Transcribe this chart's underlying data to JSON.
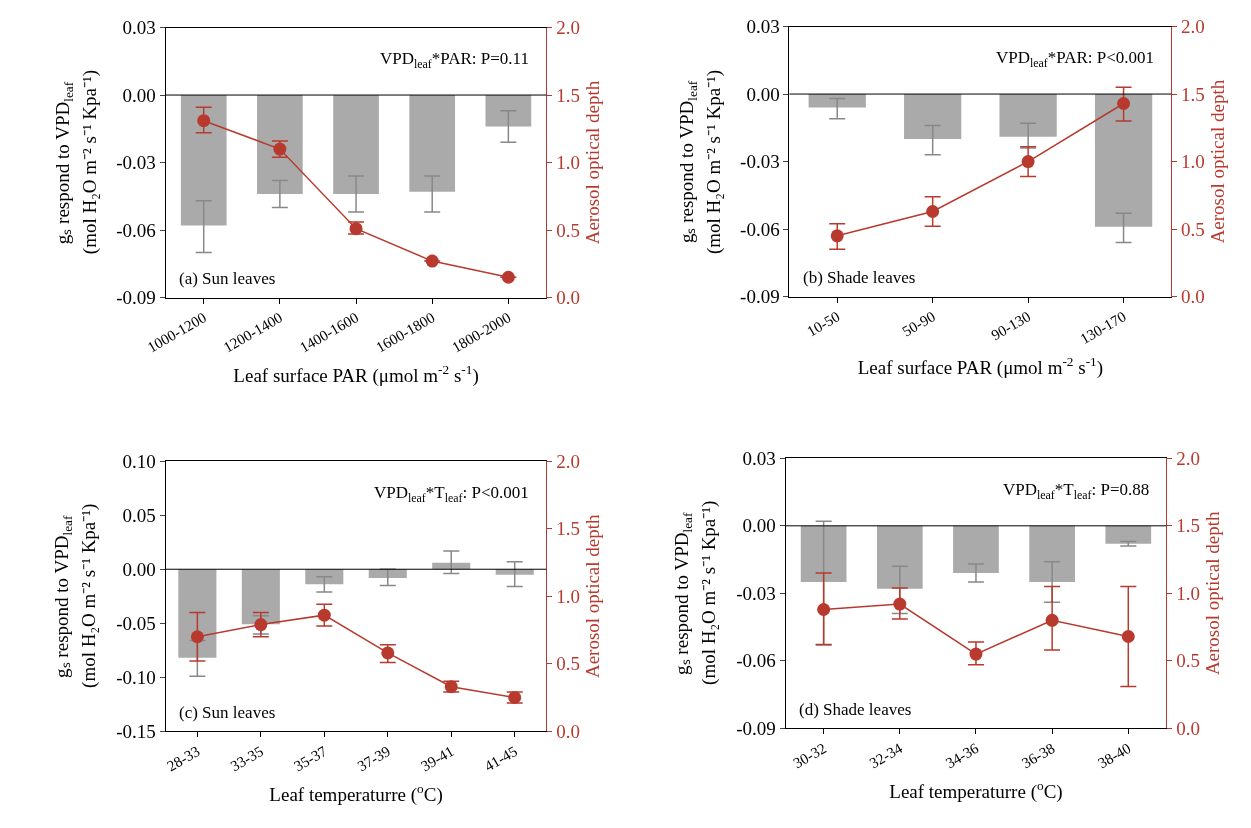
{
  "chart_data": [
    {
      "type": "bar",
      "xlabel": "Leaf surface PAR (μmol m$^{-2}$ s$^{-1}$)",
      "ylabel": "gₛ respond to VPD$_{leaf}$\n(mol H₂O m⁻² s⁻¹ Kpa⁻¹)",
      "y2label": "Aerosol optical depth",
      "categories": [
        "1000-1200",
        "1200-1400",
        "1400-1600",
        "1600-1800",
        "1800-2000"
      ],
      "series": [
        {
          "color": "#aaaaaa",
          "values": [
            -0.058,
            -0.044,
            -0.044,
            -0.043,
            -0.014
          ],
          "errors": [
            [
              -0.07,
              -0.047
            ],
            [
              -0.05,
              -0.038
            ],
            [
              -0.052,
              -0.036
            ],
            [
              -0.052,
              -0.036
            ],
            [
              -0.021,
              -0.007
            ]
          ]
        },
        {
          "type": "line",
          "axis": "y2",
          "color": "#b83a2e",
          "marker": "circle",
          "values": [
            1.31,
            1.1,
            0.51,
            0.27,
            0.15
          ],
          "errors": [
            [
              1.22,
              1.41
            ],
            [
              1.04,
              1.16
            ],
            [
              0.47,
              0.56
            ],
            null,
            null
          ]
        }
      ],
      "ylim": [
        -0.09,
        0.03
      ],
      "yticks": [
        {
          "value": -0.09,
          "label": "-0.09"
        },
        {
          "value": -0.06,
          "label": "-0.06"
        },
        {
          "value": -0.03,
          "label": "-0.03"
        },
        {
          "value": 0,
          "label": "0.00"
        },
        {
          "value": 0.03,
          "label": "0.03"
        }
      ],
      "y2lim": [
        0,
        2
      ],
      "y2ticks": [
        {
          "value": 0,
          "label": "0.0"
        },
        {
          "value": 0.5,
          "label": "0.5"
        },
        {
          "value": 1,
          "label": "1.0"
        },
        {
          "value": 1.5,
          "label": "1.5"
        },
        {
          "value": 2,
          "label": "2.0"
        }
      ],
      "ref_lines": [
        {
          "axis": "y",
          "value": 0,
          "color": "#000000"
        }
      ],
      "annotations": [
        "VPD$_{leaf}$*PAR: P=0.11",
        "(a) Sun leaves"
      ]
    },
    {
      "type": "bar",
      "xlabel": "Leaf surface PAR (μmol m$^{-2}$ s$^{-1}$)",
      "ylabel": "gₛ respond to VPD$_{leaf}$\n(mol H₂O m⁻² s⁻¹ Kpa⁻¹)",
      "y2label": "Aerosol optical depth",
      "categories": [
        "10-50",
        "50-90",
        "90-130",
        "130-170"
      ],
      "series": [
        {
          "color": "#aaaaaa",
          "values": [
            -0.006,
            -0.02,
            -0.019,
            -0.059
          ],
          "errors": [
            [
              -0.011,
              -0.002
            ],
            [
              -0.027,
              -0.014
            ],
            [
              -0.024,
              -0.013
            ],
            [
              -0.066,
              -0.053
            ]
          ]
        },
        {
          "type": "line",
          "axis": "y2",
          "color": "#b83a2e",
          "marker": "circle",
          "values": [
            0.45,
            0.63,
            1.0,
            1.43
          ],
          "errors": [
            [
              0.35,
              0.54
            ],
            [
              0.52,
              0.74
            ],
            [
              0.89,
              1.11
            ],
            [
              1.3,
              1.55
            ]
          ]
        }
      ],
      "ylim": [
        -0.09,
        0.03
      ],
      "yticks": [
        {
          "value": -0.09,
          "label": "-0.09"
        },
        {
          "value": -0.06,
          "label": "-0.06"
        },
        {
          "value": -0.03,
          "label": "-0.03"
        },
        {
          "value": 0,
          "label": "0.00"
        },
        {
          "value": 0.03,
          "label": "0.03"
        }
      ],
      "y2lim": [
        0,
        2
      ],
      "y2ticks": [
        {
          "value": 0,
          "label": "0.0"
        },
        {
          "value": 0.5,
          "label": "0.5"
        },
        {
          "value": 1,
          "label": "1.0"
        },
        {
          "value": 1.5,
          "label": "1.5"
        },
        {
          "value": 2,
          "label": "2.0"
        }
      ],
      "ref_lines": [
        {
          "axis": "y",
          "value": 0,
          "color": "#000000"
        }
      ],
      "annotations": [
        "VPD$_{leaf}$*PAR: P<0.001",
        "(b) Shade leaves"
      ]
    },
    {
      "type": "bar",
      "xlabel": "Leaf temperaturre ($^{o}$C)",
      "ylabel": "gₛ respond to VPD$_{leaf}$\n(mol H₂O m⁻² s⁻¹ Kpa⁻¹)",
      "y2label": "Aerosol optical depth",
      "categories": [
        "28-33",
        "33-35",
        "35-37",
        "37-39",
        "39-41",
        "41-45"
      ],
      "series": [
        {
          "color": "#aaaaaa",
          "values": [
            -0.082,
            -0.051,
            -0.014,
            -0.008,
            0.006,
            -0.005
          ],
          "errors": [
            [
              -0.099,
              -0.066
            ],
            [
              -0.06,
              -0.043
            ],
            [
              -0.021,
              -0.007
            ],
            [
              -0.015,
              0.0
            ],
            [
              -0.004,
              0.017
            ],
            [
              -0.016,
              0.007
            ]
          ]
        },
        {
          "type": "line",
          "axis": "y2",
          "color": "#b83a2e",
          "marker": "circle",
          "values": [
            0.7,
            0.79,
            0.86,
            0.58,
            0.33,
            0.25
          ],
          "errors": [
            [
              0.52,
              0.88
            ],
            [
              0.7,
              0.88
            ],
            [
              0.78,
              0.94
            ],
            [
              0.51,
              0.64
            ],
            [
              0.29,
              0.37
            ],
            [
              0.21,
              0.29
            ]
          ]
        }
      ],
      "ylim": [
        -0.15,
        0.1
      ],
      "yticks": [
        {
          "value": -0.15,
          "label": "-0.15"
        },
        {
          "value": -0.1,
          "label": "-0.10"
        },
        {
          "value": -0.05,
          "label": "-0.05"
        },
        {
          "value": 0,
          "label": "0.00"
        },
        {
          "value": 0.05,
          "label": "0.05"
        },
        {
          "value": 0.1,
          "label": "0.10"
        }
      ],
      "y2lim": [
        0,
        2
      ],
      "y2ticks": [
        {
          "value": 0,
          "label": "0.0"
        },
        {
          "value": 0.5,
          "label": "0.5"
        },
        {
          "value": 1,
          "label": "1.0"
        },
        {
          "value": 1.5,
          "label": "1.5"
        },
        {
          "value": 2,
          "label": "2.0"
        }
      ],
      "ref_lines": [
        {
          "axis": "y",
          "value": 0,
          "color": "#000000"
        }
      ],
      "annotations": [
        "VPD$_{leaf}$*T$_{leaf}$: P<0.001",
        "(c) Sun leaves"
      ]
    },
    {
      "type": "bar",
      "xlabel": "Leaf temperaturre ($^{o}$C)",
      "ylabel": "gₛ respond to VPD$_{leaf}$\n(mol H₂O m⁻² s⁻¹ Kpa⁻¹)",
      "y2label": "Aerosol optical depth",
      "categories": [
        "30-32",
        "32-34",
        "34-36",
        "36-38",
        "38-40"
      ],
      "series": [
        {
          "color": "#aaaaaa",
          "values": [
            -0.025,
            -0.028,
            -0.021,
            -0.025,
            -0.008
          ],
          "errors": [
            [
              -0.053,
              0.002
            ],
            [
              -0.039,
              -0.018
            ],
            [
              -0.025,
              -0.017
            ],
            [
              -0.034,
              -0.016
            ],
            [
              -0.009,
              -0.007
            ]
          ]
        },
        {
          "type": "line",
          "axis": "y2",
          "color": "#b83a2e",
          "marker": "circle",
          "values": [
            0.88,
            0.92,
            0.55,
            0.8,
            0.68
          ],
          "errors": [
            [
              0.62,
              1.15
            ],
            [
              0.81,
              1.04
            ],
            [
              0.47,
              0.64
            ],
            [
              0.58,
              1.05
            ],
            [
              0.31,
              1.05
            ]
          ]
        }
      ],
      "ylim": [
        -0.09,
        0.03
      ],
      "yticks": [
        {
          "value": -0.09,
          "label": "-0.09"
        },
        {
          "value": -0.06,
          "label": "-0.06"
        },
        {
          "value": -0.03,
          "label": "-0.03"
        },
        {
          "value": 0,
          "label": "0.00"
        },
        {
          "value": 0.03,
          "label": "0.03"
        }
      ],
      "y2lim": [
        0,
        2
      ],
      "y2ticks": [
        {
          "value": 0,
          "label": "0.0"
        },
        {
          "value": 0.5,
          "label": "0.5"
        },
        {
          "value": 1,
          "label": "1.0"
        },
        {
          "value": 1.5,
          "label": "1.5"
        },
        {
          "value": 2,
          "label": "2.0"
        }
      ],
      "ref_lines": [
        {
          "axis": "y",
          "value": 0,
          "color": "#000000"
        }
      ],
      "annotations": [
        "VPD$_{leaf}$*T$_{leaf}$: P=0.88",
        "(d) Shade leaves"
      ]
    }
  ]
}
